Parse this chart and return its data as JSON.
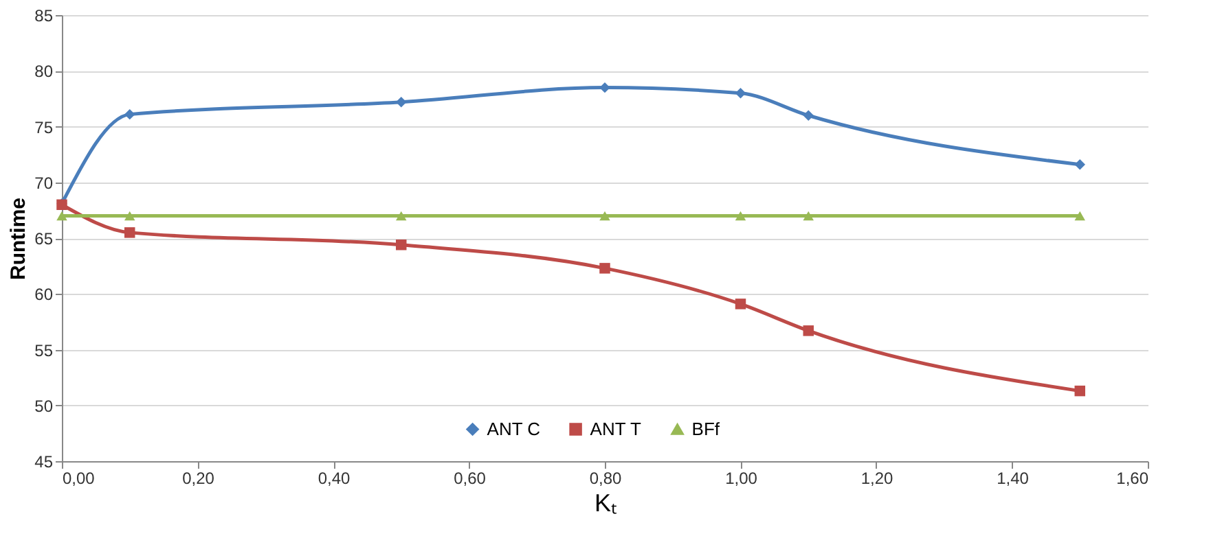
{
  "chart_data": {
    "type": "line",
    "xlabel": "Kₜ",
    "ylabel": "Runtime",
    "x": [
      0,
      0.1,
      0.5,
      0.8,
      1.0,
      1.1,
      1.5
    ],
    "series": [
      {
        "name": "ANT C",
        "color": "#4a7ebb",
        "marker": "diamond",
        "values": [
          68.1,
          76.1,
          77.2,
          78.5,
          78,
          76,
          71.6
        ]
      },
      {
        "name": "ANT T",
        "color": "#be4b48",
        "marker": "square",
        "values": [
          68,
          65.5,
          64.4,
          62.3,
          59.1,
          56.7,
          51.3
        ]
      },
      {
        "name": "BFf",
        "color": "#98b954",
        "marker": "triangle",
        "values": [
          67,
          67,
          67,
          67,
          67,
          67,
          67
        ]
      }
    ],
    "xlim": [
      0,
      1.6
    ],
    "xticks": [
      {
        "value": 0,
        "label": "0,00"
      },
      {
        "value": 0.2,
        "label": "0,20"
      },
      {
        "value": 0.4,
        "label": "0,40"
      },
      {
        "value": 0.6,
        "label": "0,60"
      },
      {
        "value": 0.8,
        "label": "0,80"
      },
      {
        "value": 1.0,
        "label": "1,00"
      },
      {
        "value": 1.2,
        "label": "1,20"
      },
      {
        "value": 1.4,
        "label": "1,40"
      },
      {
        "value": 1.6,
        "label": "1,60"
      }
    ],
    "ylim": [
      45,
      85
    ],
    "yticks": [
      45,
      50,
      55,
      60,
      65,
      70,
      75,
      80,
      85
    ],
    "grid": "y",
    "legend": "bottom"
  }
}
